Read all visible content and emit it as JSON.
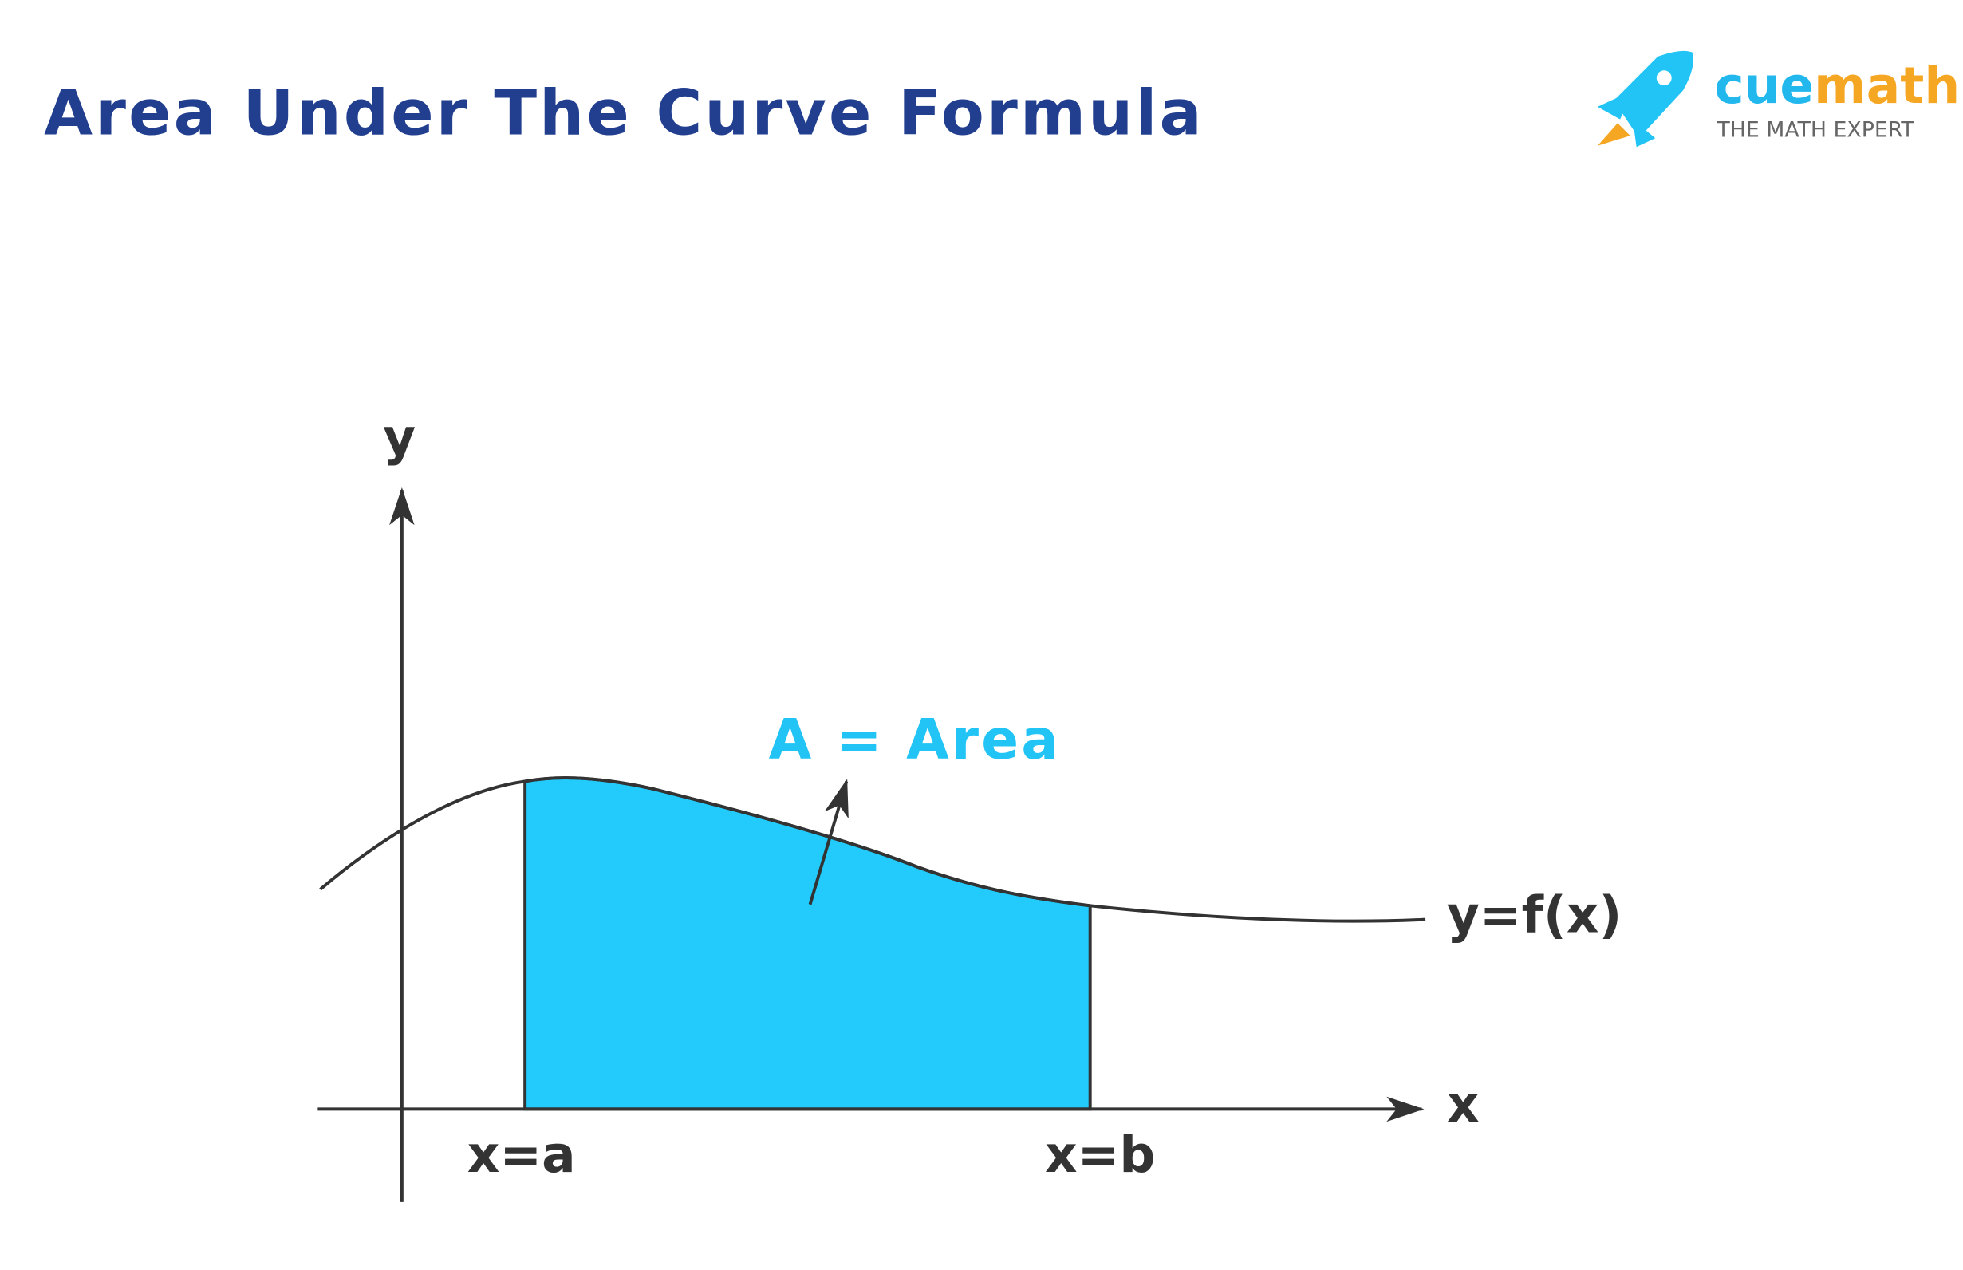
{
  "header": {
    "title": "Area Under The Curve Formula"
  },
  "logo": {
    "brand_part1": "cue",
    "brand_part2": "math",
    "tagline": "THE MATH EXPERT"
  },
  "diagram": {
    "y_axis_label": "y",
    "x_axis_label": "x",
    "area_label": "A = Area",
    "curve_label": "y=f(x)",
    "lower_bound": "x=a",
    "upper_bound": "x=b"
  }
}
